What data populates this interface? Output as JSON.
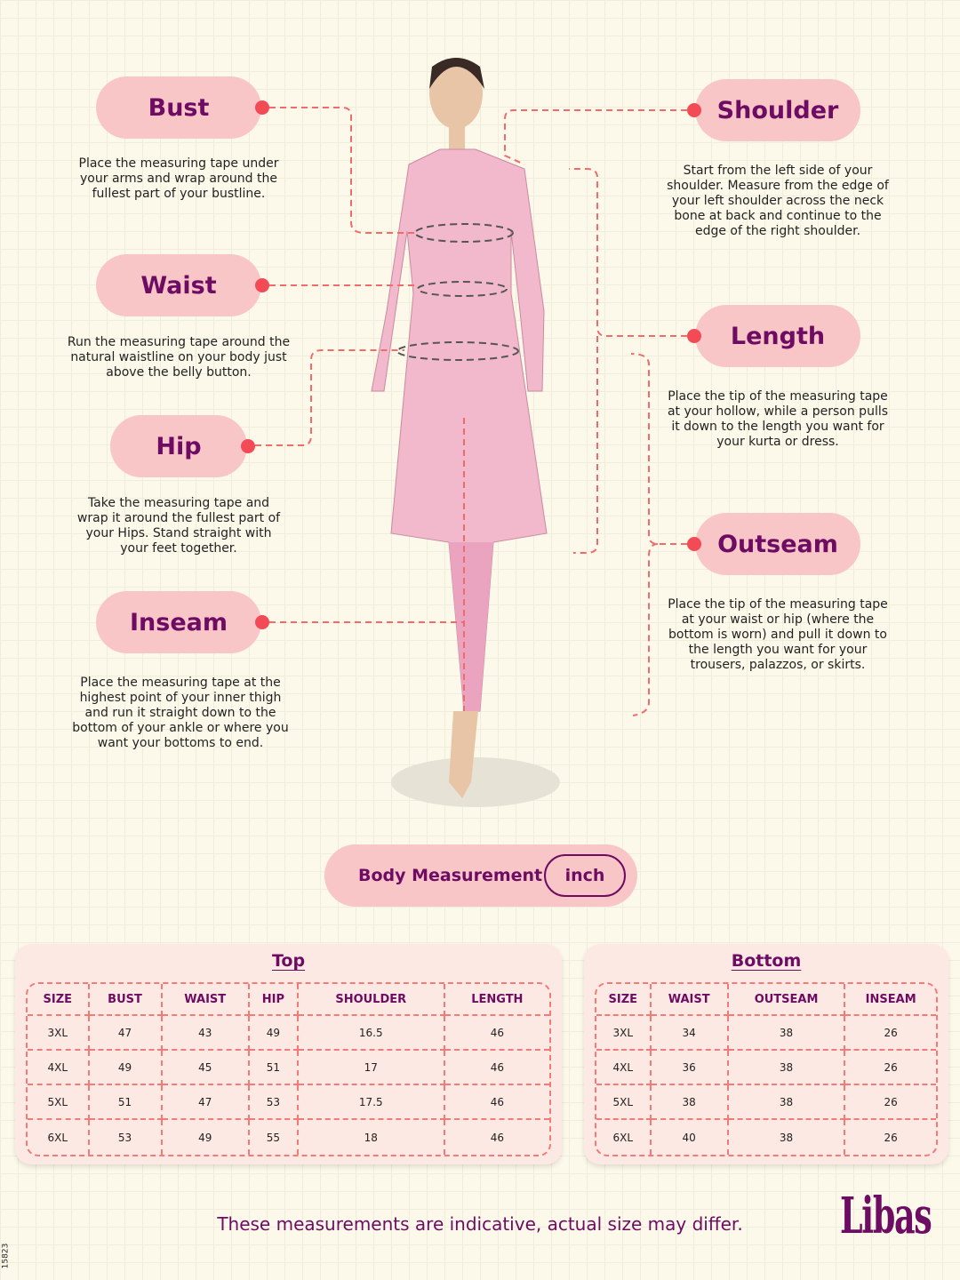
{
  "labels": {
    "bust": {
      "title": "Bust",
      "desc": "Place the measuring tape under your arms and wrap around the fullest part of your bustline."
    },
    "waist": {
      "title": "Waist",
      "desc": "Run the measuring tape around the natural waistline on your body just above the belly button."
    },
    "hip": {
      "title": "Hip",
      "desc": "Take the measuring tape and wrap it around the fullest part of your Hips. Stand straight with your feet together."
    },
    "inseam": {
      "title": "Inseam",
      "desc": "Place the measuring tape at the highest point of your inner thigh and run it straight down to the bottom of your ankle or where you want your bottoms to end."
    },
    "shoulder": {
      "title": "Shoulder",
      "desc": "Start from the left side of your shoulder. Measure from the edge of your left shoulder across the neck bone at back and continue to the edge of the right shoulder."
    },
    "length": {
      "title": "Length",
      "desc": "Place the tip of the measuring tape at your hollow, while a person pulls it down to the length you want for your kurta or dress."
    },
    "outseam": {
      "title": "Outseam",
      "desc": "Place the tip of the measuring tape at your waist or hip (where the bottom is worn) and pull it down to the length you want for your trousers, palazzos, or skirts."
    }
  },
  "unit_bar": {
    "label": "Body Measurement",
    "unit": "inch"
  },
  "top": {
    "title": "Top",
    "headers": [
      "SIZE",
      "BUST",
      "WAIST",
      "HIP",
      "SHOULDER",
      "LENGTH"
    ],
    "rows": [
      [
        "3XL",
        "47",
        "43",
        "49",
        "16.5",
        "46"
      ],
      [
        "4XL",
        "49",
        "45",
        "51",
        "17",
        "46"
      ],
      [
        "5XL",
        "51",
        "47",
        "53",
        "17.5",
        "46"
      ],
      [
        "6XL",
        "53",
        "49",
        "55",
        "18",
        "46"
      ]
    ]
  },
  "bottom": {
    "title": "Bottom",
    "headers": [
      "SIZE",
      "WAIST",
      "OUTSEAM",
      "INSEAM"
    ],
    "rows": [
      [
        "3XL",
        "34",
        "38",
        "26"
      ],
      [
        "4XL",
        "36",
        "38",
        "26"
      ],
      [
        "5XL",
        "38",
        "38",
        "26"
      ],
      [
        "6XL",
        "40",
        "38",
        "26"
      ]
    ]
  },
  "footer": {
    "note": "These measurements are indicative, actual size may differ.",
    "brand": "Libas",
    "code": "15823"
  },
  "colors": {
    "accent": "#6e0b62",
    "pill": "#f9c6c8",
    "dot": "#f24b55",
    "dash": "#f47a78"
  }
}
